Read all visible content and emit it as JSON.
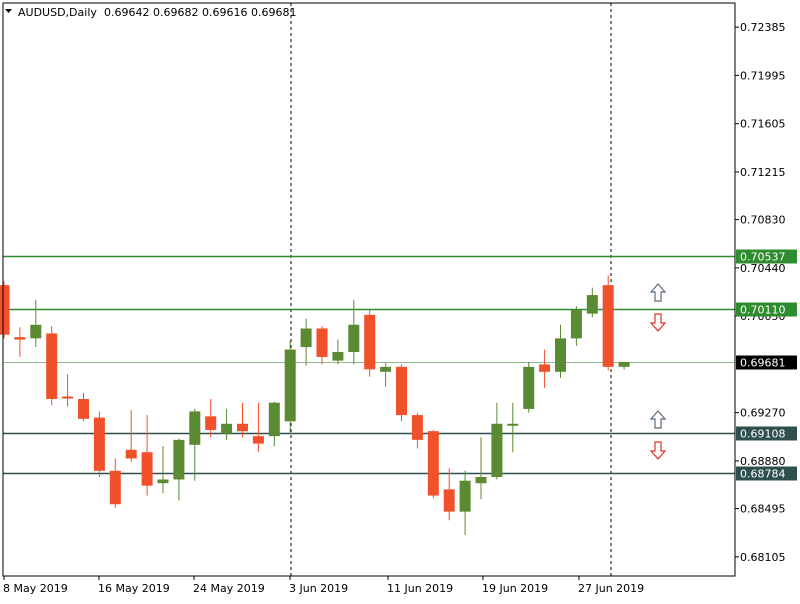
{
  "header": {
    "symbol_timeframe": "AUDUSD,Daily",
    "ohlc": "0.69642 0.69682 0.69616 0.69681"
  },
  "colors": {
    "bull": "#5a8a32",
    "bear": "#f0502a",
    "resistance_line": "#2e8b2e",
    "support_line": "#2f4f4f",
    "current_price_line": "#8fb88f",
    "grid": "#000000",
    "up_arrow": "#5a6a7a",
    "down_arrow": "#e03020"
  },
  "chart_data": {
    "type": "candlestick",
    "symbol": "AUDUSD",
    "timeframe": "Daily",
    "ylim": [
      0.6795,
      0.7258
    ],
    "y_ticks": [
      "0.72385",
      "0.71995",
      "0.71605",
      "0.71215",
      "0.70830",
      "0.70440",
      "0.70050",
      "0.69270",
      "0.68880",
      "0.68495",
      "0.68105"
    ],
    "x_tick_labels": [
      "8 May 2019",
      "16 May 2019",
      "24 May 2019",
      "3 Jun 2019",
      "11 Jun 2019",
      "19 Jun 2019",
      "27 Jun 2019"
    ],
    "price_levels": [
      {
        "label": "0.70537",
        "value": 0.70537,
        "role": "resistance"
      },
      {
        "label": "0.70110",
        "value": 0.7011,
        "role": "resistance"
      },
      {
        "label": "0.69681",
        "value": 0.69681,
        "role": "current"
      },
      {
        "label": "0.69108",
        "value": 0.69108,
        "role": "support"
      },
      {
        "label": "0.68784",
        "value": 0.68784,
        "role": "support"
      }
    ],
    "candles": [
      {
        "o": 0.703,
        "h": 0.7033,
        "l": 0.6987,
        "c": 0.699
      },
      {
        "o": 0.6988,
        "h": 0.6996,
        "l": 0.6972,
        "c": 0.6986
      },
      {
        "o": 0.6987,
        "h": 0.7018,
        "l": 0.698,
        "c": 0.6998
      },
      {
        "o": 0.6991,
        "h": 0.6997,
        "l": 0.6933,
        "c": 0.6938
      },
      {
        "o": 0.694,
        "h": 0.6958,
        "l": 0.6932,
        "c": 0.6939
      },
      {
        "o": 0.6938,
        "h": 0.6943,
        "l": 0.692,
        "c": 0.6922
      },
      {
        "o": 0.6923,
        "h": 0.6928,
        "l": 0.6875,
        "c": 0.688
      },
      {
        "o": 0.688,
        "h": 0.689,
        "l": 0.685,
        "c": 0.6853
      },
      {
        "o": 0.6897,
        "h": 0.6929,
        "l": 0.6887,
        "c": 0.689
      },
      {
        "o": 0.6895,
        "h": 0.6925,
        "l": 0.686,
        "c": 0.6868
      },
      {
        "o": 0.687,
        "h": 0.69,
        "l": 0.6862,
        "c": 0.6873
      },
      {
        "o": 0.6873,
        "h": 0.6906,
        "l": 0.6856,
        "c": 0.6905
      },
      {
        "o": 0.6901,
        "h": 0.693,
        "l": 0.6872,
        "c": 0.6928
      },
      {
        "o": 0.6924,
        "h": 0.6938,
        "l": 0.6907,
        "c": 0.6913
      },
      {
        "o": 0.691,
        "h": 0.693,
        "l": 0.6905,
        "c": 0.6918
      },
      {
        "o": 0.6918,
        "h": 0.6935,
        "l": 0.6907,
        "c": 0.6912
      },
      {
        "o": 0.6908,
        "h": 0.6935,
        "l": 0.6895,
        "c": 0.6902
      },
      {
        "o": 0.6908,
        "h": 0.6936,
        "l": 0.69,
        "c": 0.6935
      },
      {
        "o": 0.692,
        "h": 0.6985,
        "l": 0.691,
        "c": 0.6978
      },
      {
        "o": 0.698,
        "h": 0.7003,
        "l": 0.6965,
        "c": 0.6995
      },
      {
        "o": 0.6995,
        "h": 0.6997,
        "l": 0.6966,
        "c": 0.6972
      },
      {
        "o": 0.6969,
        "h": 0.6986,
        "l": 0.6966,
        "c": 0.6976
      },
      {
        "o": 0.6976,
        "h": 0.7018,
        "l": 0.6966,
        "c": 0.6998
      },
      {
        "o": 0.7006,
        "h": 0.701,
        "l": 0.6956,
        "c": 0.6962
      },
      {
        "o": 0.696,
        "h": 0.6967,
        "l": 0.6948,
        "c": 0.6964
      },
      {
        "o": 0.6964,
        "h": 0.6966,
        "l": 0.692,
        "c": 0.6925
      },
      {
        "o": 0.6925,
        "h": 0.6927,
        "l": 0.6898,
        "c": 0.6905
      },
      {
        "o": 0.6912,
        "h": 0.6913,
        "l": 0.6858,
        "c": 0.686
      },
      {
        "o": 0.6865,
        "h": 0.6882,
        "l": 0.684,
        "c": 0.6847
      },
      {
        "o": 0.6847,
        "h": 0.688,
        "l": 0.6828,
        "c": 0.6872
      },
      {
        "o": 0.687,
        "h": 0.6907,
        "l": 0.6857,
        "c": 0.6875
      },
      {
        "o": 0.6875,
        "h": 0.6935,
        "l": 0.6873,
        "c": 0.6918
      },
      {
        "o": 0.6918,
        "h": 0.6935,
        "l": 0.6895,
        "c": 0.6918
      },
      {
        "o": 0.693,
        "h": 0.6968,
        "l": 0.6927,
        "c": 0.6964
      },
      {
        "o": 0.6966,
        "h": 0.6978,
        "l": 0.6947,
        "c": 0.696
      },
      {
        "o": 0.696,
        "h": 0.6998,
        "l": 0.6955,
        "c": 0.6987
      },
      {
        "o": 0.6987,
        "h": 0.7013,
        "l": 0.6981,
        "c": 0.701
      },
      {
        "o": 0.7007,
        "h": 0.7028,
        "l": 0.7004,
        "c": 0.7022
      },
      {
        "o": 0.703,
        "h": 0.7038,
        "l": 0.6961,
        "c": 0.6964
      },
      {
        "o": 0.6964,
        "h": 0.6968,
        "l": 0.6962,
        "c": 0.6968
      }
    ]
  }
}
